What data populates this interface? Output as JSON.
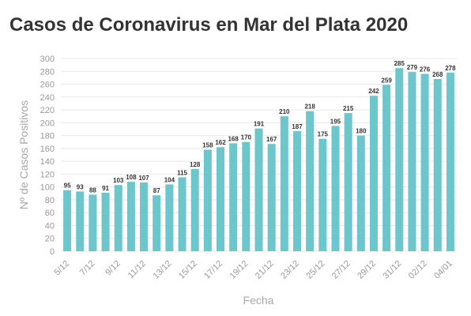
{
  "chart_data": {
    "type": "bar",
    "title": "Casos de Coronavirus en Mar del Plata 2020",
    "xlabel": "Fecha",
    "ylabel": "Nº de Casos Positivos",
    "ylim": [
      0,
      300
    ],
    "yticks": [
      0,
      20,
      40,
      60,
      80,
      100,
      120,
      140,
      160,
      180,
      200,
      220,
      240,
      260,
      280,
      300
    ],
    "grid": true,
    "color": "#6cc6cb",
    "values": [
      95,
      93,
      88,
      91,
      103,
      108,
      107,
      87,
      104,
      115,
      128,
      158,
      162,
      168,
      170,
      191,
      167,
      210,
      187,
      218,
      175,
      195,
      215,
      180,
      242,
      259,
      285,
      279,
      276,
      268,
      278
    ],
    "tick_labels": [
      "5/12",
      "7/12",
      "9/12",
      "11/12",
      "13/12",
      "15/12",
      "17/12",
      "19/12",
      "21/12",
      "23/12",
      "25/12",
      "27/12",
      "29/12",
      "31/12",
      "02/12",
      "04/01"
    ],
    "tick_positions": [
      0,
      2,
      4,
      6,
      8,
      10,
      12,
      14,
      16,
      18,
      20,
      22,
      24,
      26,
      28,
      30
    ]
  }
}
